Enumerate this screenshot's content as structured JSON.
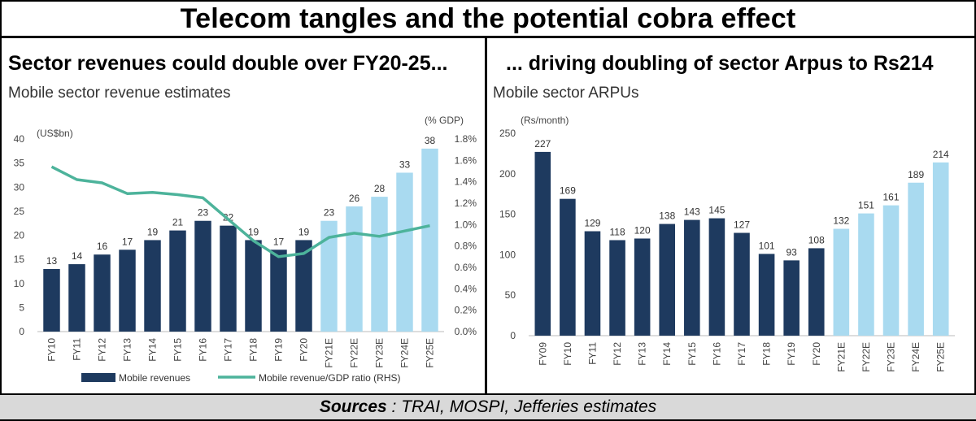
{
  "title": "Telecom tangles and the potential cobra effect",
  "footer": {
    "sources_label": "Sources",
    "sources_text": " : TRAI, MOSPI, Jefferies estimates"
  },
  "colors": {
    "actual": "#1e3a5f",
    "estimate": "#a9daf0",
    "line": "#4db39b"
  },
  "left_panel": {
    "heading": "Sector revenues could double over FY20-25...",
    "subtitle": "Mobile sector revenue estimates"
  },
  "right_panel": {
    "heading": "... driving doubling of sector Arpus to Rs214",
    "subtitle": "Mobile sector ARPUs"
  },
  "chart_data": [
    {
      "type": "bar",
      "title": "Mobile sector revenue estimates",
      "ylabel": "(US$bn)",
      "y2label": "(% GDP)",
      "ylim": [
        0,
        40
      ],
      "yticks": [
        "0",
        "5",
        "10",
        "15",
        "20",
        "25",
        "30",
        "35",
        "40"
      ],
      "y2lim": [
        0,
        1.8
      ],
      "y2ticks": [
        "0.0%",
        "0.2%",
        "0.4%",
        "0.6%",
        "0.8%",
        "1.0%",
        "1.2%",
        "1.4%",
        "1.6%",
        "1.8%"
      ],
      "categories": [
        "FY10",
        "FY11",
        "FY12",
        "FY13",
        "FY14",
        "FY15",
        "FY16",
        "FY17",
        "FY18",
        "FY19",
        "FY20",
        "FY21E",
        "FY22E",
        "FY23E",
        "FY24E",
        "FY25E"
      ],
      "values": [
        13,
        14,
        16,
        17,
        19,
        21,
        23,
        22,
        19,
        17,
        19,
        23,
        26,
        28,
        33,
        38
      ],
      "labels": [
        "13",
        "14",
        "16",
        "17",
        "19",
        "21",
        "23",
        "22",
        "19",
        "17",
        "19",
        "23",
        "26",
        "28",
        "33",
        "38"
      ],
      "estimate_from_index": 11,
      "line_series": {
        "name": "Mobile revenue/GDP ratio (RHS)",
        "values": [
          1.54,
          1.42,
          1.39,
          1.29,
          1.3,
          1.28,
          1.25,
          1.05,
          0.85,
          0.7,
          0.73,
          0.88,
          0.92,
          0.89,
          0.94,
          0.99
        ]
      },
      "legend": [
        "Mobile revenues",
        "Mobile revenue/GDP ratio (RHS)"
      ]
    },
    {
      "type": "bar",
      "title": "Mobile sector ARPUs",
      "ylabel": "(Rs/month)",
      "ylim": [
        0,
        250
      ],
      "yticks": [
        "0",
        "50",
        "100",
        "150",
        "200",
        "250"
      ],
      "categories": [
        "FY09",
        "FY10",
        "FY11",
        "FY12",
        "FY13",
        "FY14",
        "FY15",
        "FY16",
        "FY17",
        "FY18",
        "FY19",
        "FY20",
        "FY21E",
        "FY22E",
        "FY23E",
        "FY24E",
        "FY25E"
      ],
      "values": [
        227,
        169,
        129,
        118,
        120,
        138,
        143,
        145,
        127,
        101,
        93,
        108,
        132,
        151,
        161,
        189,
        214
      ],
      "labels": [
        "227",
        "169",
        "129",
        "118",
        "120",
        "138",
        "143",
        "145",
        "127",
        "101",
        "93",
        "108",
        "132",
        "151",
        "161",
        "189",
        "214"
      ],
      "estimate_from_index": 12
    }
  ]
}
